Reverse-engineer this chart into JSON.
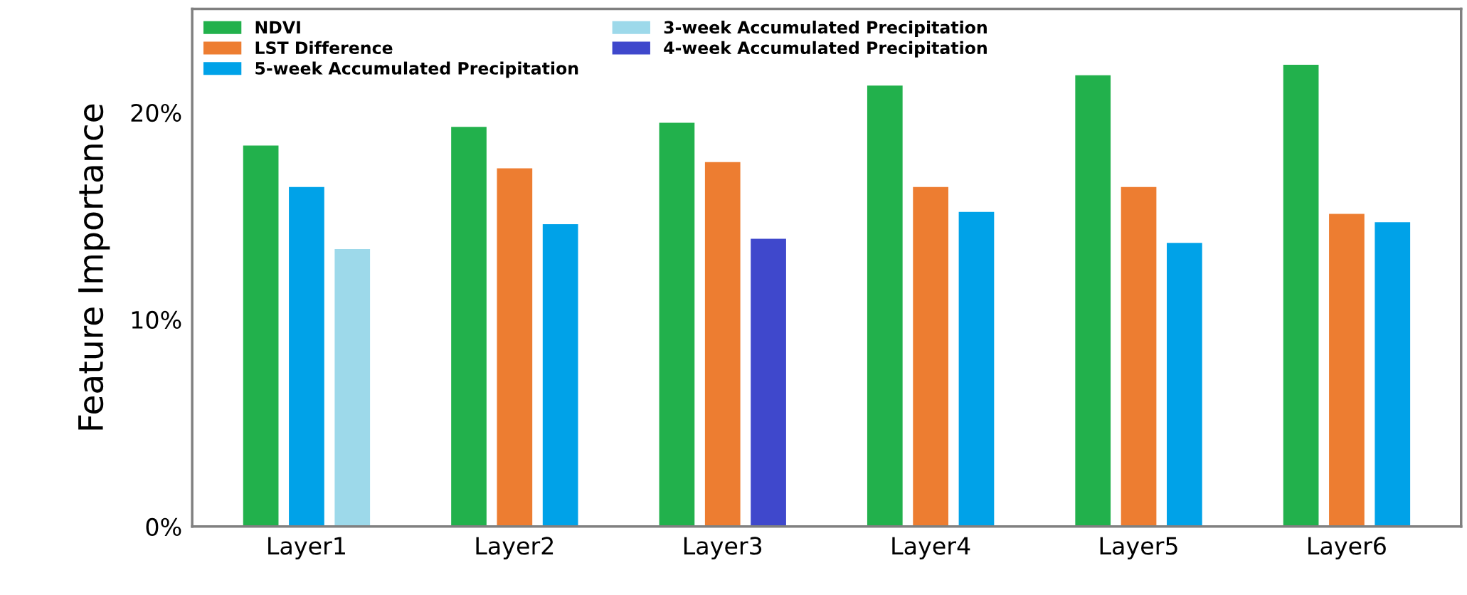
{
  "chart_data": {
    "type": "bar",
    "ylabel": "Feature Importance",
    "categories": [
      "Layer1",
      "Layer2",
      "Layer3",
      "Layer4",
      "Layer5",
      "Layer6"
    ],
    "series": [
      {
        "name": "NDVI",
        "color": "#22b14c",
        "values": [
          18.4,
          19.3,
          19.5,
          21.3,
          21.8,
          22.3
        ]
      },
      {
        "name": "LST Difference",
        "color": "#ed7d31",
        "values": [
          null,
          17.3,
          17.6,
          16.4,
          16.4,
          15.1
        ]
      },
      {
        "name": "5-week Accumulated Precipitation",
        "color": "#00a2e8",
        "values": [
          16.4,
          14.6,
          null,
          15.2,
          13.7,
          14.7
        ]
      },
      {
        "name": "3-week Accumulated Precipitation",
        "color": "#9dd9ea",
        "values": [
          13.4,
          null,
          null,
          null,
          null,
          null
        ]
      },
      {
        "name": "4-week Accumulated Precipitation",
        "color": "#3f48cc",
        "values": [
          null,
          null,
          13.9,
          null,
          null,
          null
        ]
      }
    ],
    "ylim": [
      0,
      25
    ],
    "yticks": [
      {
        "value": 0,
        "label": "0%"
      },
      {
        "value": 10,
        "label": "10%"
      },
      {
        "value": 20,
        "label": "20%"
      }
    ],
    "grid": false,
    "legend": "top left"
  }
}
